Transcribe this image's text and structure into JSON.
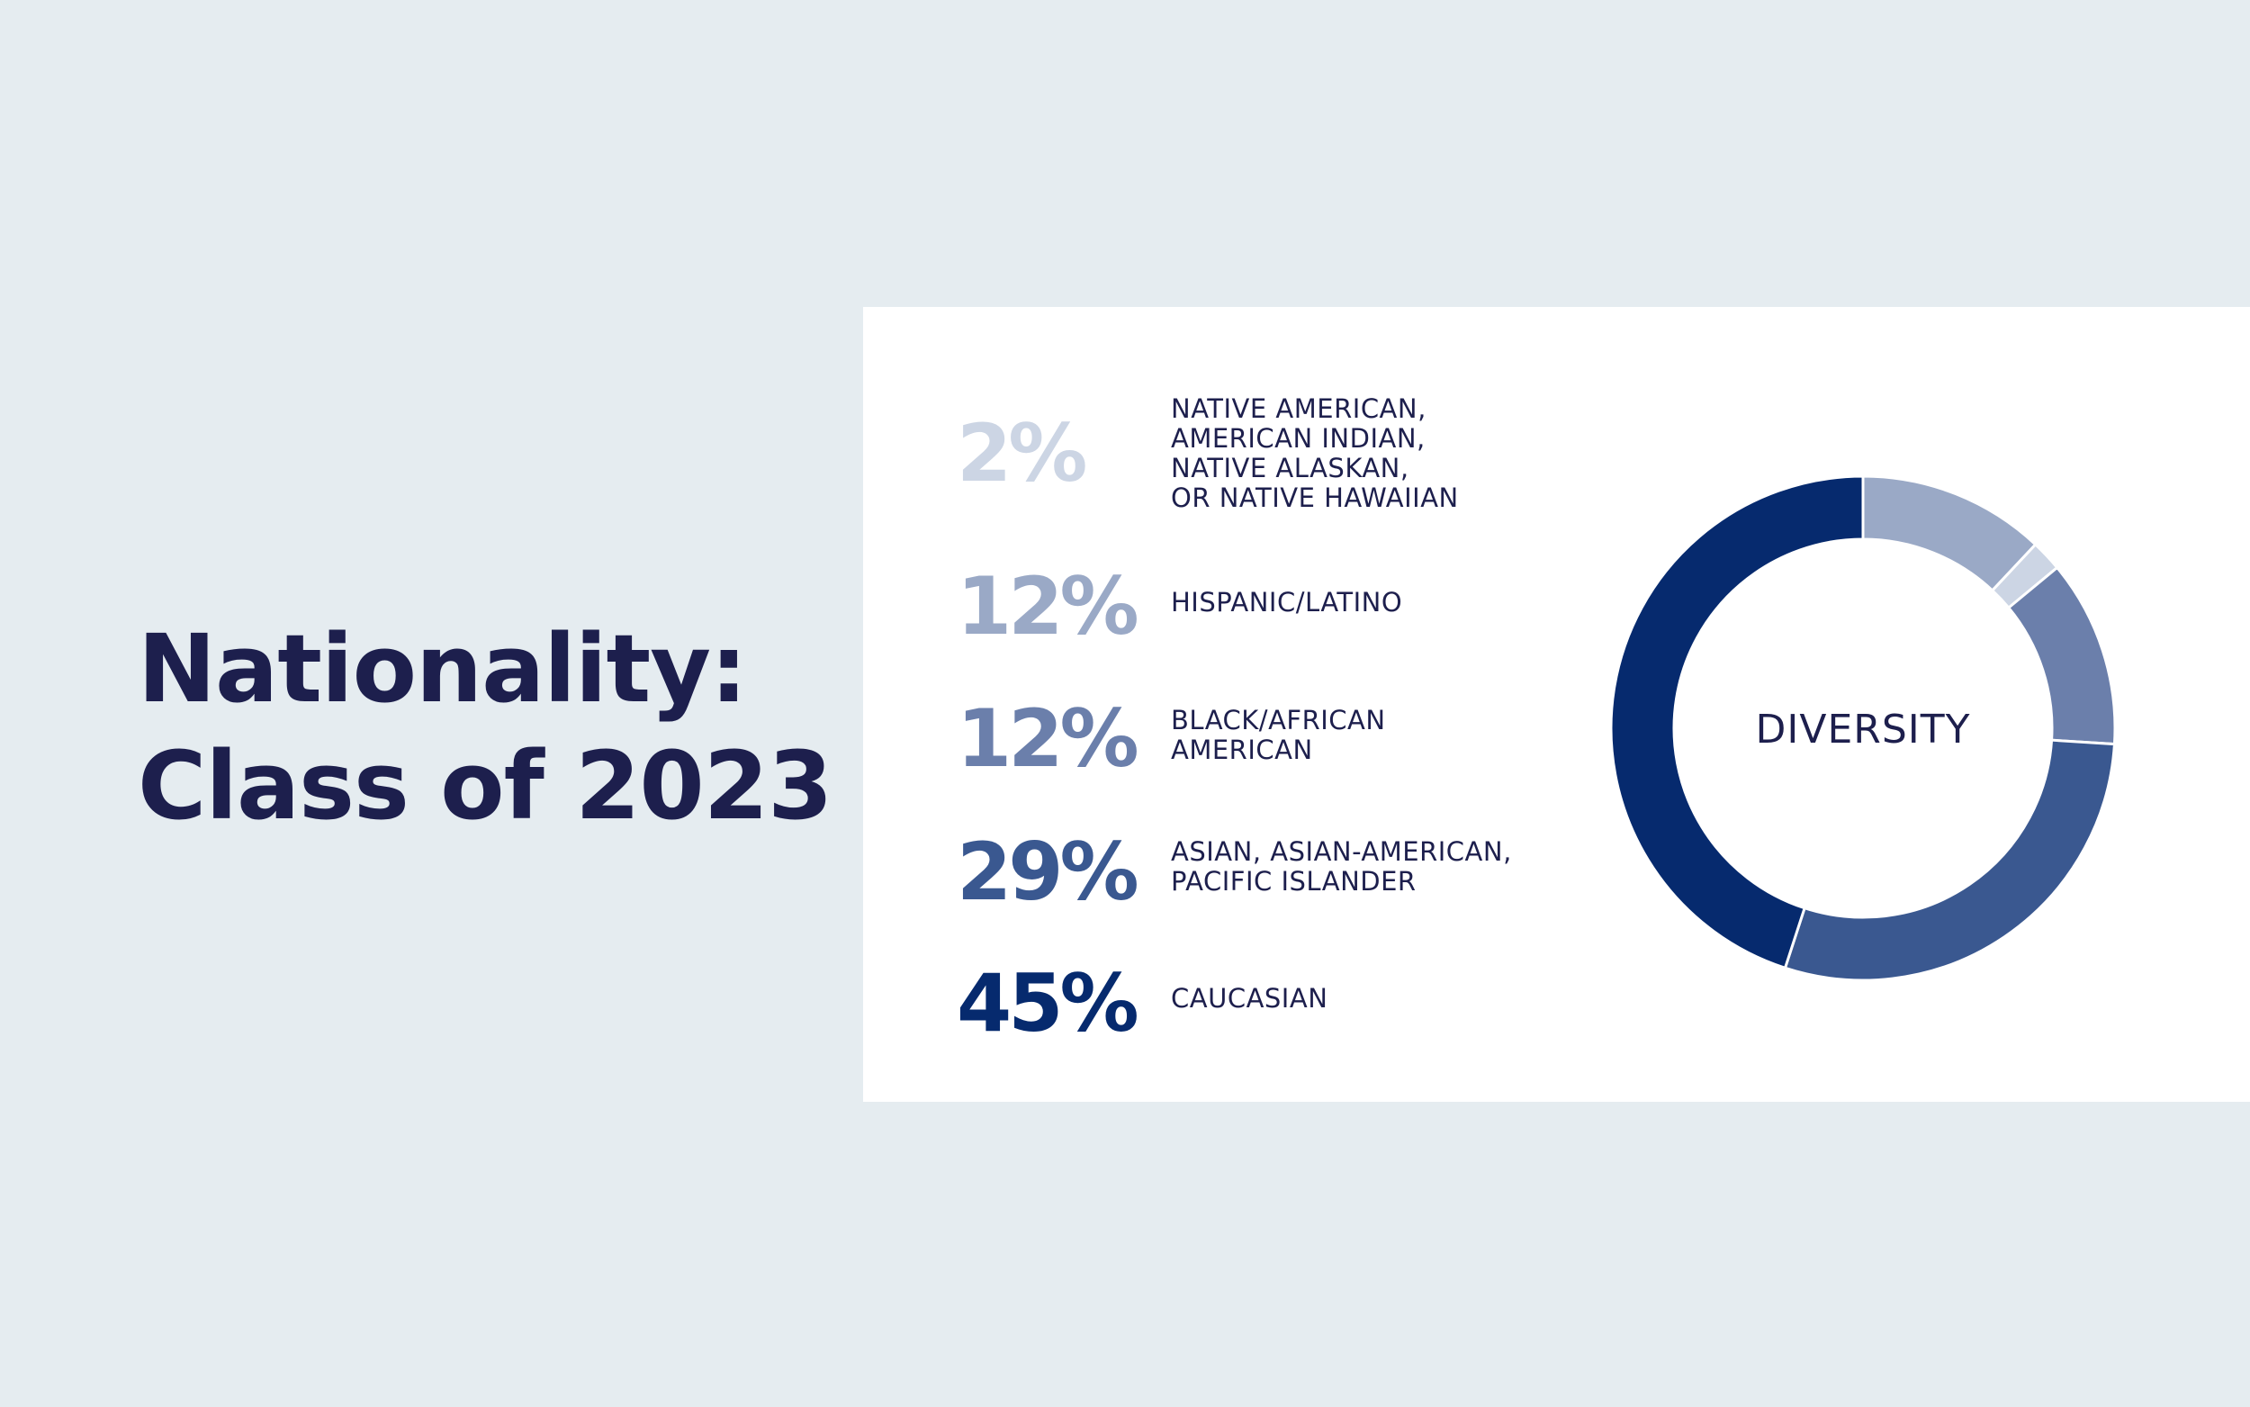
{
  "title": {
    "line1": "Nationality:",
    "line2": "Class of 2023"
  },
  "chart_data": {
    "type": "pie",
    "center_label": "DIVERSITY",
    "slices": [
      {
        "value_label": "2%",
        "value": 2,
        "label_lines": [
          "NATIVE AMERICAN,",
          "AMERICAN INDIAN,",
          "NATIVE ALASKAN,",
          "OR NATIVE HAWAIIAN"
        ],
        "color": "#ccd5e4"
      },
      {
        "value_label": "12%",
        "value": 12,
        "label_lines": [
          "HISPANIC/LATINO"
        ],
        "color": "#9aa9c6"
      },
      {
        "value_label": "12%",
        "value": 12,
        "label_lines": [
          "BLACK/AFRICAN",
          "AMERICAN"
        ],
        "color": "#6b7fab"
      },
      {
        "value_label": "29%",
        "value": 29,
        "label_lines": [
          "ASIAN, ASIAN-AMERICAN,",
          "PACIFIC ISLANDER"
        ],
        "color": "#3a5890"
      },
      {
        "value_label": "45%",
        "value": 45,
        "label_lines": [
          "CAUCASIAN"
        ],
        "color": "#062a6e"
      }
    ],
    "donut_order": [
      1,
      0,
      2,
      3,
      4
    ]
  }
}
